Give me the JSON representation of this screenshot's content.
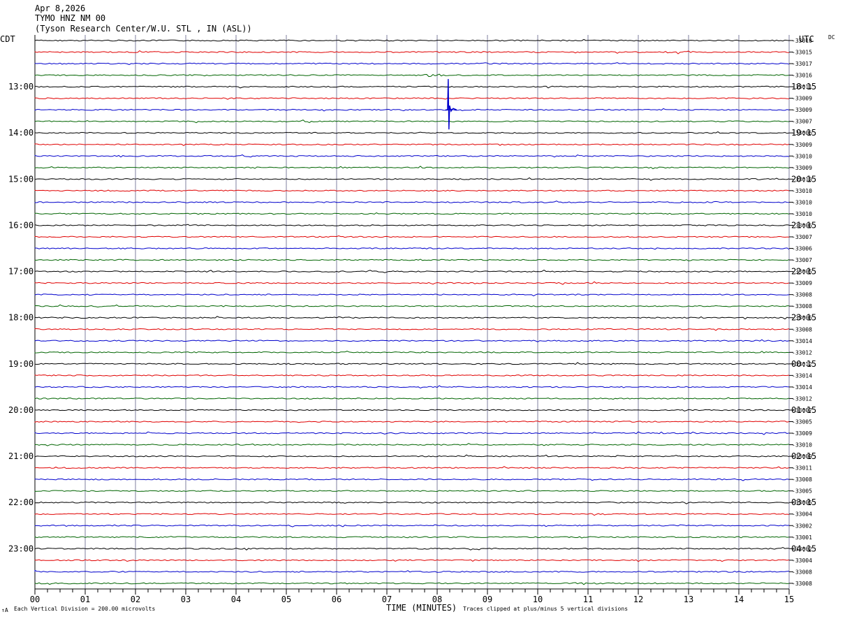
{
  "header": {
    "line1": "Apr 8,2026",
    "line2": "TYMO HNZ NM 00",
    "line3": "(Tyson Research Center/W.U. STL , IN (ASL))"
  },
  "left_tz": "CDT",
  "right_tz": "UTC",
  "dc_label": "DC",
  "footer": {
    "scale": "Each Vertical Division =  200.00 microvolts",
    "marker": "↑A",
    "clip": "Traces clipped at plus/minus 5 vertical divisions"
  },
  "chart_data": {
    "type": "line",
    "xlabel": "TIME (MINUTES)",
    "xlim": [
      0,
      15
    ],
    "x_ticks": [
      "00",
      "01",
      "02",
      "03",
      "04",
      "05",
      "06",
      "07",
      "08",
      "09",
      "10",
      "11",
      "12",
      "13",
      "14",
      "15"
    ],
    "trace_colors": [
      "#000000",
      "#e00000",
      "#0000cc",
      "#006400"
    ],
    "grid_color": "#7f7f9f",
    "left_hour_labels": [
      "13:00",
      "14:00",
      "15:00",
      "16:00",
      "17:00",
      "18:00",
      "19:00",
      "20:00",
      "21:00",
      "22:00",
      "23:00"
    ],
    "right_hour_labels": [
      "18:15",
      "19:15",
      "20:15",
      "21:15",
      "22:15",
      "23:15",
      "00:15",
      "01:15",
      "02:15",
      "03:15",
      "04:15"
    ],
    "dc_offsets": [
      "-33010",
      "-33015",
      "-33017",
      "-33016",
      "-33011",
      "-33009",
      "-33009",
      "-33007",
      "-33006",
      "-33009",
      "-33010",
      "-33009",
      "-33010",
      "-33010",
      "-33010",
      "-33010",
      "-33006",
      "-33007",
      "-33006",
      "-33007",
      "-33005",
      "-33009",
      "-33008",
      "-33008",
      "-33006",
      "-33008",
      "-33014",
      "-33012",
      "-33012",
      "-33014",
      "-33014",
      "-33012",
      "-33007",
      "-33005",
      "-33009",
      "-33010",
      "-33009",
      "-33011",
      "-33008",
      "-33005",
      "-33005",
      "-33004",
      "-33002",
      "-33001",
      "-33002",
      "-33004",
      "-33008",
      "-33008"
    ],
    "events": [
      {
        "trace": 6,
        "minute": 8.22,
        "type": "clipped-spike"
      },
      {
        "trace": 3,
        "minute": 7.9,
        "type": "burst"
      },
      {
        "trace": 1,
        "minute": 12.8,
        "type": "burst"
      }
    ]
  }
}
